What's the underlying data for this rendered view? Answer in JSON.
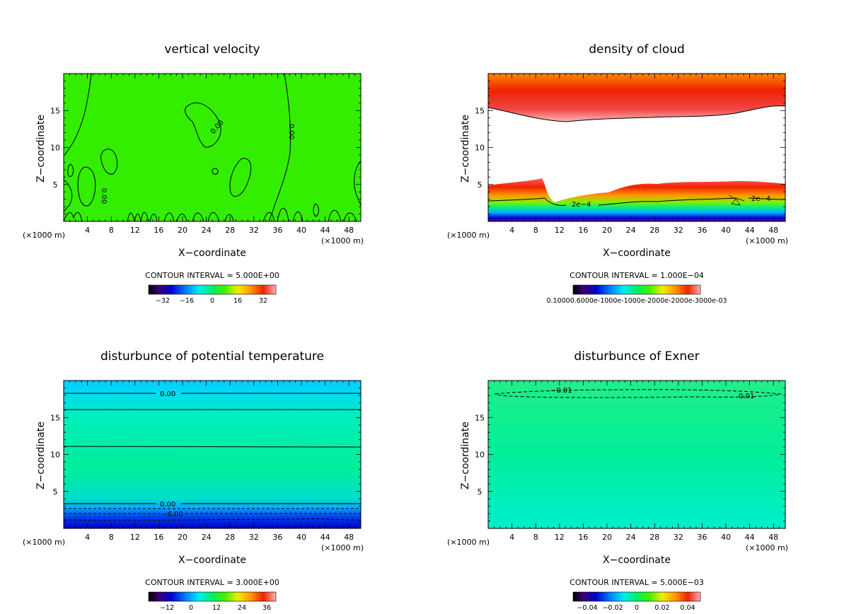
{
  "figure": {
    "units_left": "(×1000 m)",
    "units_right": "(×1000 m)"
  },
  "colors": {
    "green": "#33ee00",
    "cyan": "#00eec8",
    "blue": "#0000cc",
    "red": "#ee2200",
    "orange": "#ff9900"
  },
  "chart_data": [
    {
      "type": "contour",
      "title": "vertical velocity",
      "xlabel": "X−coordinate",
      "ylabel": "Z−coordinate",
      "x_ticks": [
        4,
        8,
        12,
        16,
        20,
        24,
        28,
        32,
        36,
        40,
        44,
        48
      ],
      "y_ticks": [
        5,
        10,
        15
      ],
      "xlim": [
        0,
        50
      ],
      "ylim": [
        0,
        20
      ],
      "contour_interval": "CONTOUR INTERVAL = 5.000E+00",
      "colorbar_ticks": [
        "−32",
        "−16",
        "0",
        "16",
        "32"
      ],
      "contour_labels": [
        "0.00",
        "0.00",
        "0.00"
      ],
      "field_color": "#33ee00"
    },
    {
      "type": "contour",
      "title": "density of cloud",
      "xlabel": "X−coordinate",
      "ylabel": "Z−coordinate",
      "x_ticks": [
        4,
        8,
        12,
        16,
        20,
        24,
        28,
        32,
        36,
        40,
        44,
        48
      ],
      "y_ticks": [
        5,
        10,
        15
      ],
      "xlim": [
        0,
        50
      ],
      "ylim": [
        0,
        20
      ],
      "contour_interval": "CONTOUR INTERVAL = 1.000E−04",
      "colorbar_text": "0.10000.6000e-1000e-1000e-2000e-2000e-3000e-03",
      "contour_labels": [
        "2e−4",
        "2e−4"
      ]
    },
    {
      "type": "contour",
      "title": "disturbunce of potential temperature",
      "xlabel": "X−coordinate",
      "ylabel": "Z−coordinate",
      "x_ticks": [
        4,
        8,
        12,
        16,
        20,
        24,
        28,
        32,
        36,
        40,
        44,
        48
      ],
      "y_ticks": [
        5,
        10,
        15
      ],
      "xlim": [
        0,
        50
      ],
      "ylim": [
        0,
        20
      ],
      "contour_interval": "CONTOUR INTERVAL = 3.000E+00",
      "colorbar_ticks": [
        "−12",
        "0",
        "12",
        "24",
        "36"
      ],
      "contour_labels": [
        "0.00",
        "0.00",
        "−6.00"
      ]
    },
    {
      "type": "contour",
      "title": "disturbunce of Exner",
      "xlabel": "X−coordinate",
      "ylabel": "Z−coordinate",
      "x_ticks": [
        4,
        8,
        12,
        16,
        20,
        24,
        28,
        32,
        36,
        40,
        44,
        48
      ],
      "y_ticks": [
        5,
        10,
        15
      ],
      "xlim": [
        0,
        50
      ],
      "ylim": [
        0,
        20
      ],
      "contour_interval": "CONTOUR INTERVAL = 5.000E−03",
      "colorbar_ticks": [
        "−0.04",
        "−0.02",
        "0",
        "0.02",
        "0.04"
      ],
      "contour_labels": [
        "−0.01",
        "0.01"
      ]
    }
  ]
}
